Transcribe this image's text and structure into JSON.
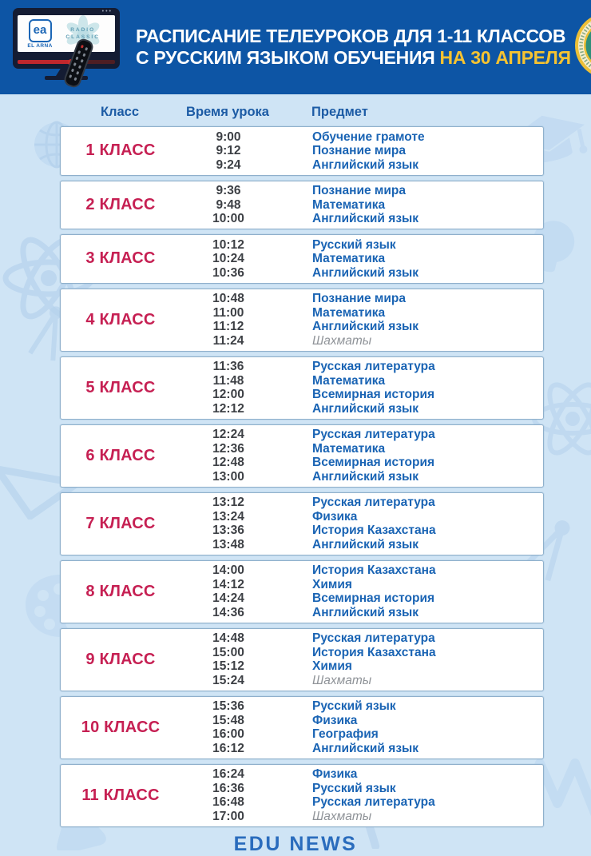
{
  "header": {
    "title_line1": "РАСПИСАНИЕ ТЕЛЕУРОКОВ ДЛЯ 1-11 КЛАССОВ",
    "title_line2": "С РУССКИМ ЯЗЫКОМ ОБУЧЕНИЯ",
    "title_highlight": "НА 30 АПРЕЛЯ",
    "tv_logo": {
      "el_arna_monogram": "ea",
      "el_arna_label": "EL ARNA",
      "radio_line1": "RADIO",
      "radio_line2": "CLASSIC"
    }
  },
  "table": {
    "col_class": "Класс",
    "col_time": "Время урока",
    "col_subject": "Предмет"
  },
  "schedule": [
    {
      "class_label": "1 КЛАСС",
      "lessons": [
        {
          "time": "9:00",
          "subject": "Обучение грамоте"
        },
        {
          "time": "9:12",
          "subject": "Познание мира"
        },
        {
          "time": "9:24",
          "subject": "Английский язык"
        }
      ]
    },
    {
      "class_label": "2 КЛАСС",
      "lessons": [
        {
          "time": "9:36",
          "subject": "Познание мира"
        },
        {
          "time": "9:48",
          "subject": "Математика"
        },
        {
          "time": "10:00",
          "subject": "Английский язык"
        }
      ]
    },
    {
      "class_label": "3 КЛАСС",
      "lessons": [
        {
          "time": "10:12",
          "subject": "Русский язык"
        },
        {
          "time": "10:24",
          "subject": "Математика"
        },
        {
          "time": "10:36",
          "subject": "Английский язык"
        }
      ]
    },
    {
      "class_label": "4 КЛАСС",
      "lessons": [
        {
          "time": "10:48",
          "subject": "Познание мира"
        },
        {
          "time": "11:00",
          "subject": "Математика"
        },
        {
          "time": "11:12",
          "subject": "Английский язык"
        },
        {
          "time": "11:24",
          "subject": "Шахматы",
          "muted": true
        }
      ]
    },
    {
      "class_label": "5 КЛАСС",
      "lessons": [
        {
          "time": "11:36",
          "subject": "Русская литература"
        },
        {
          "time": "11:48",
          "subject": "Математика"
        },
        {
          "time": "12:00",
          "subject": "Всемирная история"
        },
        {
          "time": "12:12",
          "subject": "Английский язык"
        }
      ]
    },
    {
      "class_label": "6 КЛАСС",
      "lessons": [
        {
          "time": "12:24",
          "subject": "Русская литература"
        },
        {
          "time": "12:36",
          "subject": "Математика"
        },
        {
          "time": "12:48",
          "subject": "Всемирная история"
        },
        {
          "time": "13:00",
          "subject": "Английский язык"
        }
      ]
    },
    {
      "class_label": "7 КЛАСС",
      "lessons": [
        {
          "time": "13:12",
          "subject": "Русская литература"
        },
        {
          "time": "13:24",
          "subject": "Физика"
        },
        {
          "time": "13:36",
          "subject": "История Казахстана"
        },
        {
          "time": "13:48",
          "subject": "Английский язык"
        }
      ]
    },
    {
      "class_label": "8 КЛАСС",
      "lessons": [
        {
          "time": "14:00",
          "subject": "История Казахстана"
        },
        {
          "time": "14:12",
          "subject": "Химия"
        },
        {
          "time": "14:24",
          "subject": "Всемирная история"
        },
        {
          "time": "14:36",
          "subject": "Английский язык"
        }
      ]
    },
    {
      "class_label": "9 КЛАСС",
      "lessons": [
        {
          "time": "14:48",
          "subject": "Русская литература"
        },
        {
          "time": "15:00",
          "subject": "История Казахстана"
        },
        {
          "time": "15:12",
          "subject": "Химия"
        },
        {
          "time": "15:24",
          "subject": "Шахматы",
          "muted": true
        }
      ]
    },
    {
      "class_label": "10 КЛАСС",
      "lessons": [
        {
          "time": "15:36",
          "subject": "Русский язык"
        },
        {
          "time": "15:48",
          "subject": "Физика"
        },
        {
          "time": "16:00",
          "subject": "География"
        },
        {
          "time": "16:12",
          "subject": "Английский язык"
        }
      ]
    },
    {
      "class_label": "11 КЛАСС",
      "lessons": [
        {
          "time": "16:24",
          "subject": "Физика"
        },
        {
          "time": "16:36",
          "subject": "Русский язык"
        },
        {
          "time": "16:48",
          "subject": "Русская литература"
        },
        {
          "time": "17:00",
          "subject": "Шахматы",
          "muted": true
        }
      ]
    }
  ],
  "footer": {
    "brand": "EDU NEWS"
  },
  "colors": {
    "header_bg": "#0d55a5",
    "page_bg": "#cfe4f5",
    "highlight": "#f6c331",
    "class_label": "#c62053",
    "subject": "#1a64b4",
    "time": "#3d4045",
    "muted_subject": "#8f9398",
    "footer_text": "#2a6cbd",
    "watermark": "#b7d3ed"
  }
}
